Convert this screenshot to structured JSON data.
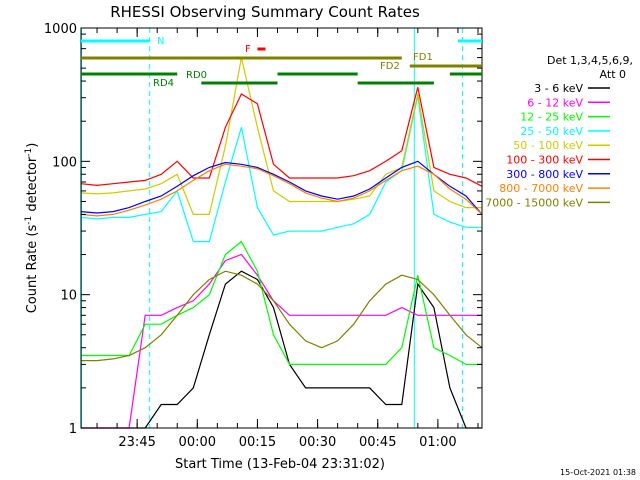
{
  "chart_data": {
    "type": "line",
    "title": "RHESSI Observing Summary Count Rates",
    "xlabel": "Start Time (13-Feb-04 23:31:02)",
    "ylabel_main": "Count Rate (s",
    "ylabel_sup1": "-1",
    "ylabel_mid": " detector",
    "ylabel_sup2": "-1",
    "ylabel_end": ")",
    "y_scale": "log",
    "ylim": [
      1,
      1000
    ],
    "xlim_minutes_after_start": [
      0,
      100
    ],
    "x_ticks": [
      "23:45",
      "00:00",
      "00:15",
      "00:30",
      "00:45",
      "01:00"
    ],
    "y_ticks": [
      "1",
      "10",
      "100",
      "1000"
    ],
    "grid": false,
    "legend_position": "right",
    "legend": {
      "header_line1": "Det 1,3,4,5,6,9,",
      "header_line2": "Att 0",
      "entries": [
        {
          "label": "3 - 6 keV",
          "color": "#000000"
        },
        {
          "label": "6 - 12 keV",
          "color": "#ff00ff"
        },
        {
          "label": "12 - 25 keV",
          "color": "#00ff00"
        },
        {
          "label": "25 - 50 keV",
          "color": "#00ffff"
        },
        {
          "label": "50 - 100 keV",
          "color": "#cccc00"
        },
        {
          "label": "100 - 300 keV",
          "color": "#ff0000"
        },
        {
          "label": "300 - 800 keV",
          "color": "#0000ff"
        },
        {
          "label": "800 - 7000 keV",
          "color": "#ff8000"
        },
        {
          "label": "7000 - 15000 keV",
          "color": "#808000"
        }
      ]
    },
    "series_x_minutes": [
      0,
      4,
      8,
      12,
      16,
      20,
      24,
      28,
      32,
      36,
      40,
      44,
      48,
      52,
      56,
      60,
      64,
      68,
      72,
      76,
      80,
      84,
      88,
      92,
      96,
      100
    ],
    "series": [
      {
        "label": "3 - 6 keV",
        "values": [
          1,
          1,
          1,
          1,
          1,
          1.5,
          1.5,
          2,
          5,
          12,
          15,
          13,
          8,
          3,
          2,
          2,
          2,
          2,
          2,
          1.5,
          1.5,
          12,
          8,
          2,
          1,
          1
        ]
      },
      {
        "label": "6 - 12 keV",
        "values": [
          1,
          1,
          1,
          1,
          7,
          7,
          8,
          9,
          12,
          18,
          20,
          14,
          9,
          7,
          7,
          7,
          7,
          7,
          7,
          7,
          8,
          7,
          7,
          7,
          7,
          7
        ]
      },
      {
        "label": "12 - 25 keV",
        "values": [
          3.5,
          3.5,
          3.5,
          3.5,
          6,
          6,
          7,
          8,
          10,
          20,
          25,
          15,
          5,
          3,
          3,
          3,
          3,
          3,
          3,
          3,
          4,
          14,
          4,
          3.5,
          3,
          3
        ]
      },
      {
        "label": "25 - 50 keV",
        "values": [
          38,
          37,
          38,
          38,
          40,
          42,
          60,
          25,
          25,
          70,
          180,
          45,
          28,
          30,
          30,
          30,
          32,
          34,
          40,
          70,
          85,
          310,
          40,
          35,
          32,
          32
        ]
      },
      {
        "label": "50 - 100 keV",
        "values": [
          58,
          57,
          58,
          60,
          62,
          68,
          80,
          40,
          40,
          130,
          600,
          180,
          60,
          50,
          50,
          50,
          50,
          52,
          55,
          80,
          90,
          320,
          60,
          50,
          45,
          45
        ]
      },
      {
        "label": "100 - 300 keV",
        "values": [
          68,
          66,
          68,
          70,
          72,
          80,
          100,
          75,
          75,
          180,
          320,
          270,
          95,
          75,
          75,
          75,
          75,
          78,
          85,
          100,
          120,
          360,
          90,
          80,
          75,
          65
        ]
      },
      {
        "label": "300 - 800 keV",
        "values": [
          42,
          41,
          42,
          45,
          50,
          55,
          65,
          78,
          90,
          98,
          95,
          90,
          80,
          70,
          60,
          55,
          52,
          55,
          62,
          75,
          90,
          100,
          80,
          65,
          55,
          40
        ]
      },
      {
        "label": "800 - 7000 keV",
        "values": [
          40,
          39,
          40,
          43,
          47,
          52,
          60,
          72,
          85,
          95,
          92,
          88,
          78,
          68,
          58,
          53,
          50,
          53,
          60,
          72,
          85,
          92,
          80,
          62,
          52,
          40
        ]
      },
      {
        "label": "7000 - 15000 keV",
        "values": [
          3.2,
          3.2,
          3.3,
          3.5,
          4,
          5,
          7,
          10,
          13,
          15,
          14,
          12,
          9,
          6,
          4.5,
          4,
          4.5,
          6,
          9,
          12,
          14,
          13,
          10,
          7,
          5,
          4
        ]
      }
    ],
    "states": {
      "n_label": "N",
      "f_label": "F",
      "fd1_label": "FD1",
      "fd2_label": "FD2",
      "rd0_label": "RD0",
      "rd4_label": "RD4"
    }
  },
  "timestamp": "15-Oct-2021 01:38"
}
